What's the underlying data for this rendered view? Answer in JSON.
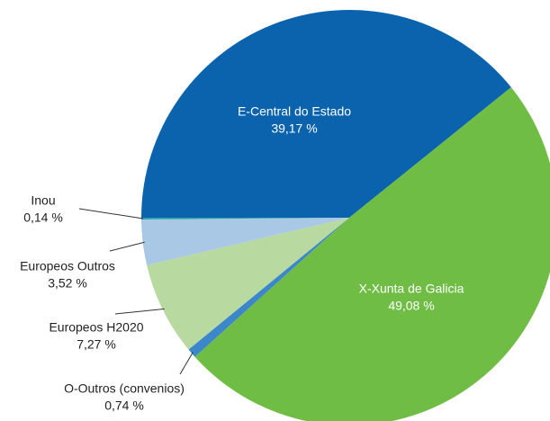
{
  "chart_data": {
    "type": "pie",
    "categories": [
      "E-Central do Estado",
      "X-Xunta de Galicia",
      "O-Outros (convenios)",
      "Europeos H2020",
      "Europeos Outros",
      "Inou"
    ],
    "values": [
      39.17,
      49.08,
      0.74,
      7.27,
      3.52,
      0.14
    ],
    "value_labels": [
      "39,17 %",
      "49,08 %",
      "0,74 %",
      "7,27 %",
      "3,52 %",
      "0,14 %"
    ],
    "colors": [
      "#0b63ad",
      "#70bd45",
      "#3b87c9",
      "#b8d9a0",
      "#a8c8e5",
      "#2aa3a8"
    ]
  }
}
